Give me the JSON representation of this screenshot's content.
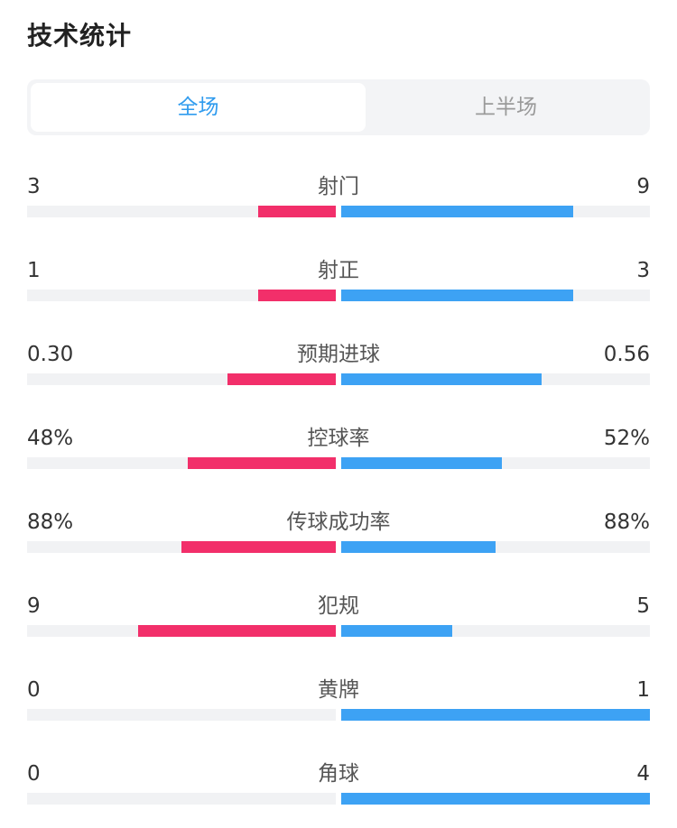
{
  "page": {
    "title": "技术统计"
  },
  "tabs": [
    {
      "label": "全场",
      "active": true
    },
    {
      "label": "上半场",
      "active": false
    }
  ],
  "colors": {
    "home_bar": "#f22f6a",
    "away_bar": "#3da2f4",
    "active_tab": "#2f9bee",
    "track": "#f1f2f4"
  },
  "stats": [
    {
      "label": "射门",
      "home": "3",
      "away": "9",
      "home_share": 0.25,
      "away_share": 0.75
    },
    {
      "label": "射正",
      "home": "1",
      "away": "3",
      "home_share": 0.25,
      "away_share": 0.75
    },
    {
      "label": "预期进球",
      "home": "0.30",
      "away": "0.56",
      "home_share": 0.35,
      "away_share": 0.65
    },
    {
      "label": "控球率",
      "home": "48%",
      "away": "52%",
      "home_share": 0.48,
      "away_share": 0.52
    },
    {
      "label": "传球成功率",
      "home": "88%",
      "away": "88%",
      "home_share": 0.5,
      "away_share": 0.5
    },
    {
      "label": "犯规",
      "home": "9",
      "away": "5",
      "home_share": 0.64,
      "away_share": 0.36
    },
    {
      "label": "黄牌",
      "home": "0",
      "away": "1",
      "home_share": 0,
      "away_share": 1
    },
    {
      "label": "角球",
      "home": "0",
      "away": "4",
      "home_share": 0,
      "away_share": 1
    }
  ]
}
